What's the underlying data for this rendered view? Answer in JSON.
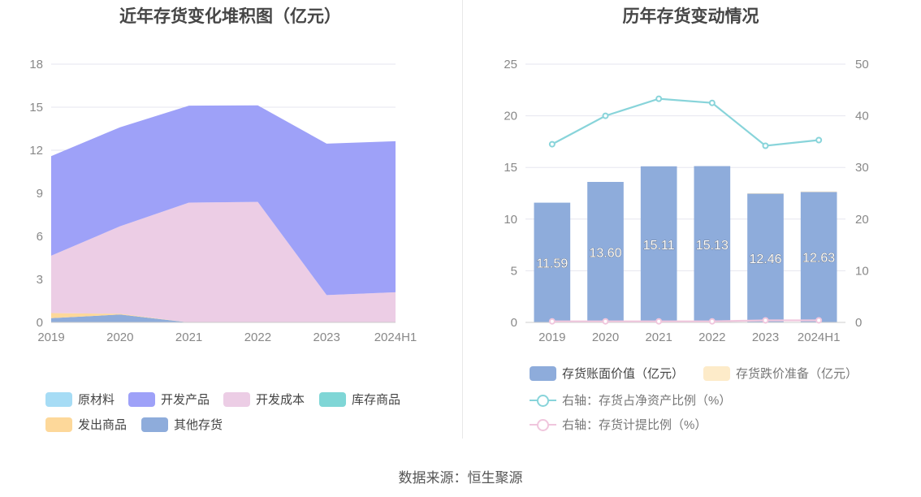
{
  "left_title": "近年存货变化堆积图（亿元）",
  "right_title": "历年存货变动情况",
  "source": "数据来源：恒生聚源",
  "chart_data": [
    {
      "type": "area",
      "title": "近年存货变化堆积图（亿元）",
      "stacked": true,
      "categories": [
        "2019",
        "2020",
        "2021",
        "2022",
        "2023",
        "2024H1"
      ],
      "ylim": [
        0,
        18
      ],
      "yticks": [
        0,
        3,
        6,
        9,
        12,
        15,
        18
      ],
      "grid": true,
      "legend_position": "bottom",
      "series": [
        {
          "name": "其他存货",
          "color": "#8eacdb",
          "values": [
            0.3,
            0.55,
            0.0,
            0.0,
            0.0,
            0.0
          ]
        },
        {
          "name": "发出商品",
          "color": "#fdd89a",
          "values": [
            0.35,
            0.05,
            0.0,
            0.0,
            0.0,
            0.0
          ]
        },
        {
          "name": "库存商品",
          "color": "#7fd6d6",
          "values": [
            0.0,
            0.0,
            0.0,
            0.0,
            0.0,
            0.0
          ]
        },
        {
          "name": "开发成本",
          "color": "#eccde5",
          "values": [
            4.0,
            6.1,
            8.35,
            8.4,
            1.9,
            2.1
          ]
        },
        {
          "name": "开发产品",
          "color": "#9ea1f8",
          "values": [
            6.94,
            6.9,
            6.76,
            6.73,
            10.56,
            10.53
          ]
        },
        {
          "name": "原材料",
          "color": "#a6dcf5",
          "values": [
            0.0,
            0.0,
            0.0,
            0.0,
            0.0,
            0.0
          ]
        }
      ],
      "legend_order": [
        "原材料",
        "开发产品",
        "开发成本",
        "库存商品",
        "发出商品",
        "其他存货"
      ]
    },
    {
      "type": "bar",
      "title": "历年存货变动情况",
      "categories": [
        "2019",
        "2020",
        "2021",
        "2022",
        "2023",
        "2024H1"
      ],
      "ylim": [
        0,
        25
      ],
      "yticks": [
        0,
        5,
        10,
        15,
        20,
        25
      ],
      "y2lim": [
        0,
        50
      ],
      "y2ticks": [
        0,
        10,
        20,
        30,
        40,
        50
      ],
      "grid": true,
      "legend_position": "bottom",
      "series": [
        {
          "name": "存货账面价值（亿元）",
          "kind": "bar",
          "color": "#8eacdb",
          "values": [
            11.59,
            13.6,
            15.11,
            15.13,
            12.46,
            12.63
          ],
          "labels": [
            "11.59",
            "13.60",
            "15.11",
            "15.13",
            "12.46",
            "12.63"
          ]
        },
        {
          "name": "存货跌价准备（亿元）",
          "kind": "bar",
          "color": "#fdebc9",
          "values": [
            0,
            0,
            0,
            0,
            0.05,
            0.05
          ]
        },
        {
          "name": "右轴：存货占净资产比例（%）",
          "kind": "line",
          "axis": "right",
          "color": "#88d4da",
          "values": [
            34.5,
            40.0,
            43.3,
            42.5,
            34.2,
            35.3
          ]
        },
        {
          "name": "右轴：存货计提比例（%）",
          "kind": "line",
          "axis": "right",
          "color": "#f0c6dd",
          "values": [
            0.2,
            0.2,
            0.2,
            0.2,
            0.4,
            0.4
          ]
        }
      ]
    }
  ]
}
